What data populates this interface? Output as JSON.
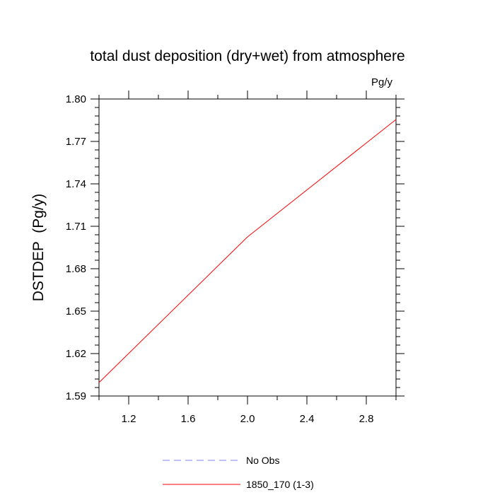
{
  "chart_data": {
    "type": "line",
    "title": "total dust deposition (dry+wet) from atmosphere",
    "units_label": "Pg/y",
    "ylabel": "DSTDEP  (Pg/y)",
    "xlabel": "",
    "xlim": [
      1.0,
      3.0
    ],
    "ylim": [
      1.59,
      1.8
    ],
    "xticks": [
      "1.2",
      "1.6",
      "2.0",
      "2.4",
      "2.8"
    ],
    "yticks": [
      "1.59",
      "1.62",
      "1.65",
      "1.68",
      "1.71",
      "1.74",
      "1.77",
      "1.80"
    ],
    "series": [
      {
        "name": "1850_170 (1-3)",
        "color": "#ff0000",
        "style": "solid",
        "x": [
          1.0,
          2.0,
          3.0
        ],
        "y": [
          1.5995,
          1.7025,
          1.7855
        ]
      }
    ],
    "legend": [
      {
        "label": "No Obs",
        "color": "#8080ff",
        "style": "dashed"
      },
      {
        "label": "1850_170 (1-3)",
        "color": "#ff0000",
        "style": "solid"
      }
    ],
    "legend_position": "bottom",
    "grid": false
  }
}
